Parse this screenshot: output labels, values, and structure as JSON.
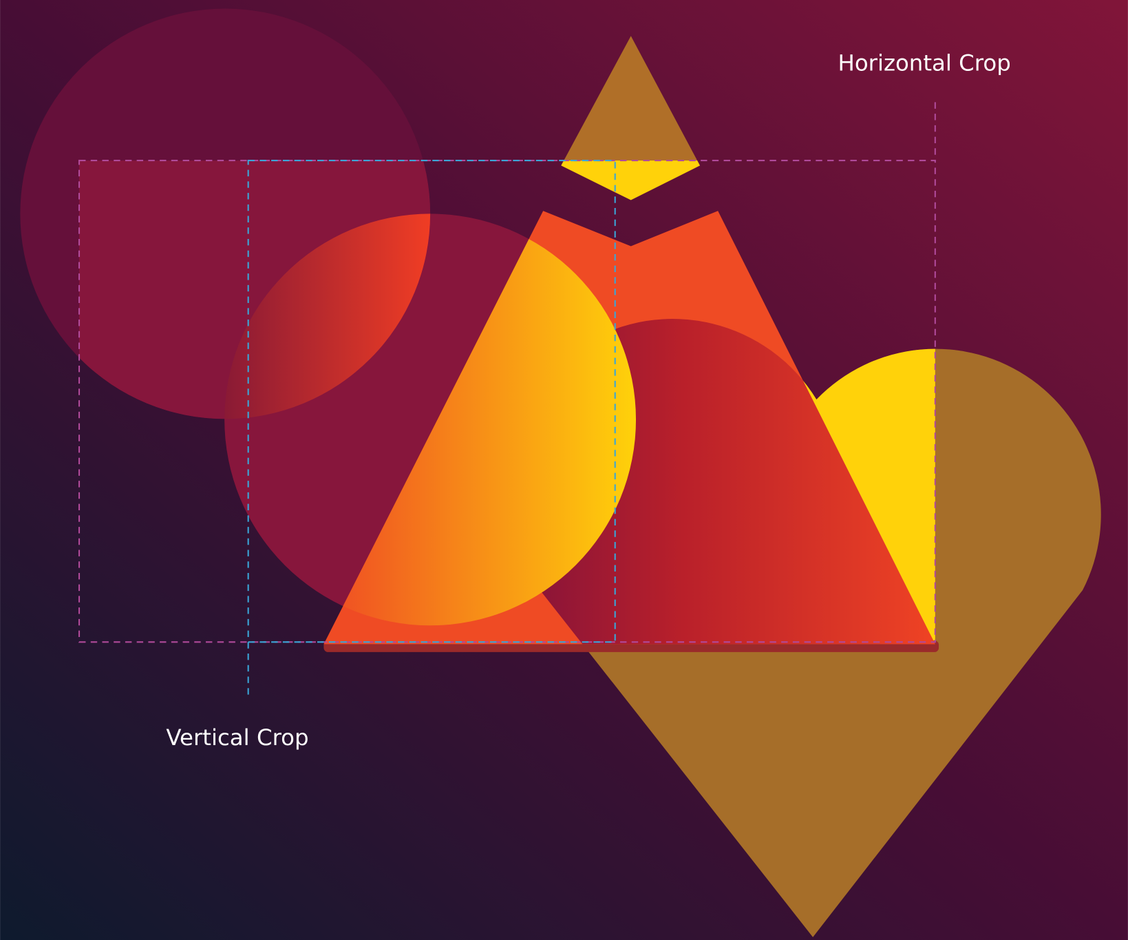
{
  "labels": {
    "horizontal": "Horizontal Crop",
    "vertical": "Vertical Crop"
  }
}
